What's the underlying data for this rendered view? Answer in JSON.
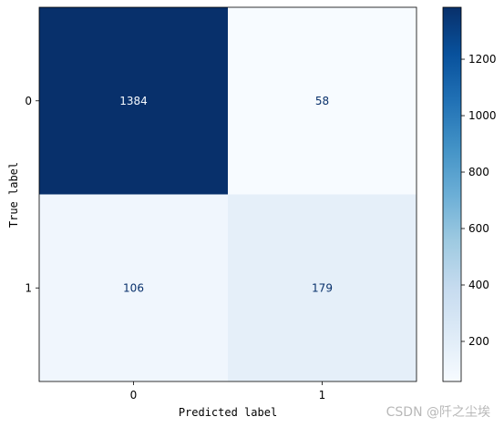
{
  "chart_data": {
    "type": "heatmap",
    "xlabel": "Predicted label",
    "ylabel": "True label",
    "x_categories": [
      "0",
      "1"
    ],
    "y_categories": [
      "0",
      "1"
    ],
    "matrix": [
      [
        1384,
        58
      ],
      [
        106,
        179
      ]
    ],
    "colormap": "Blues",
    "colorbar": {
      "min": 58,
      "max": 1384,
      "ticks": [
        200,
        400,
        600,
        800,
        1000,
        1200
      ]
    },
    "colors": {
      "low": "#f7fbff",
      "high": "#08306b",
      "text_on_dark": "#f7fbff",
      "text_on_light": "#08306b"
    }
  },
  "watermark": "CSDN @阡之尘埃"
}
